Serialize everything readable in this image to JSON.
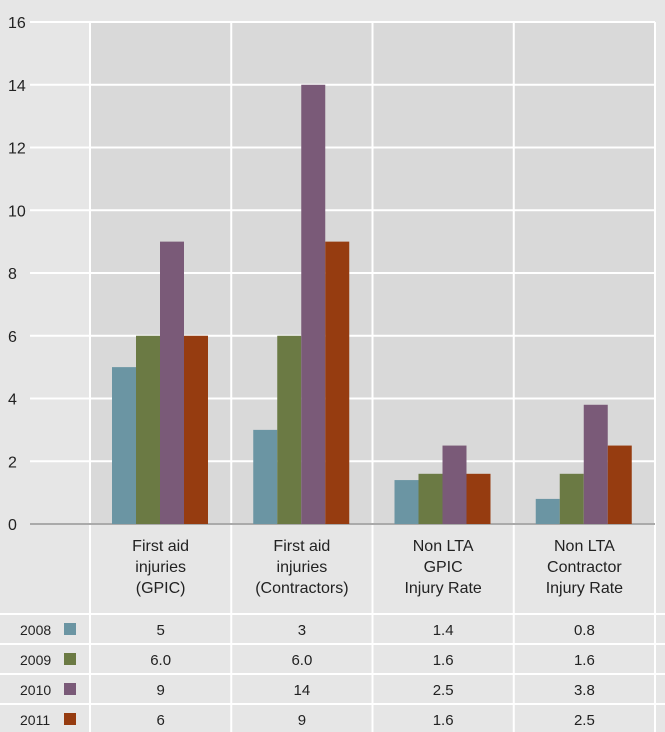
{
  "chart_data": {
    "type": "bar",
    "categories": [
      [
        "First aid",
        "injuries",
        "(GPIC)"
      ],
      [
        "First aid",
        "injuries",
        "(Contractors)"
      ],
      [
        "Non LTA",
        "GPIC",
        "Injury Rate"
      ],
      [
        "Non LTA",
        "Contractor",
        "Injury Rate"
      ]
    ],
    "series": [
      {
        "name": "2008",
        "color": "#6b95a3",
        "values": [
          5,
          3,
          1.4,
          0.8
        ],
        "labels": [
          "5",
          "3",
          "1.4",
          "0.8"
        ]
      },
      {
        "name": "2009",
        "color": "#6b7a44",
        "values": [
          6.0,
          6.0,
          1.6,
          1.6
        ],
        "labels": [
          "6.0",
          "6.0",
          "1.6",
          "1.6"
        ]
      },
      {
        "name": "2010",
        "color": "#7a5a78",
        "values": [
          9,
          14,
          2.5,
          3.8
        ],
        "labels": [
          "9",
          "14",
          "2.5",
          "3.8"
        ]
      },
      {
        "name": "2011",
        "color": "#963c10",
        "values": [
          6,
          9,
          1.6,
          2.5
        ],
        "labels": [
          "6",
          "9",
          "1.6",
          "2.5"
        ]
      }
    ],
    "yticks": [
      "0",
      "2",
      "4",
      "6",
      "8",
      "10",
      "12",
      "14",
      "16"
    ],
    "ylim": [
      0,
      16
    ],
    "grid": true,
    "legend": "data-table-left",
    "colors": {
      "background": "#e6e6e6",
      "plot_background": "#d9d9d9",
      "grid": "#ffffff"
    }
  }
}
